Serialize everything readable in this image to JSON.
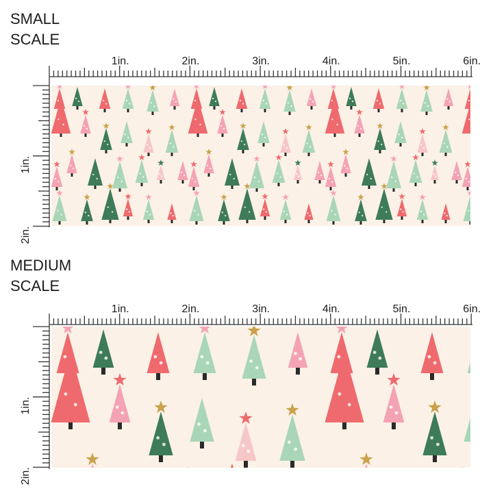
{
  "sections": [
    {
      "title": [
        "SMALL",
        "SCALE"
      ],
      "ruler": {
        "x_labels": [
          "1in.",
          "2in.",
          "3in.",
          "4in.",
          "5in.",
          "6in."
        ],
        "y_labels": [
          "1in.",
          "2in."
        ]
      }
    },
    {
      "title": [
        "MEDIUM",
        "SCALE"
      ],
      "ruler": {
        "x_labels": [
          "1in.",
          "2in.",
          "3in.",
          "4in.",
          "5in.",
          "6in."
        ],
        "y_labels": [
          "1in.",
          "2in."
        ]
      }
    }
  ]
}
